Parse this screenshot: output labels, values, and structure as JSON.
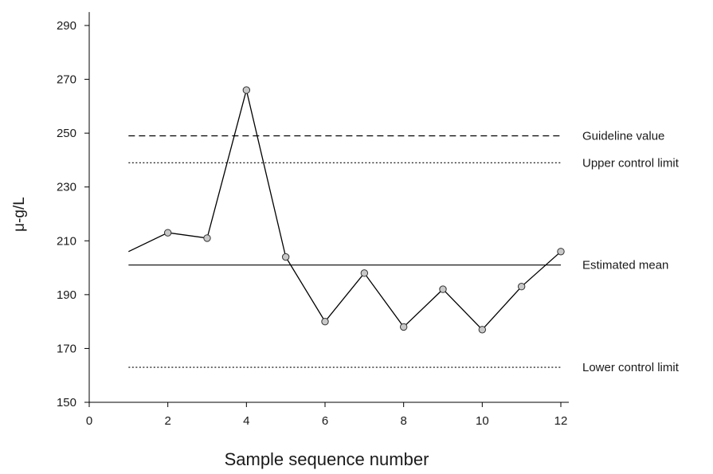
{
  "chart_data": {
    "type": "line",
    "xlabel": "Sample sequence number",
    "ylabel": "μ-g/L",
    "xlim": [
      0,
      12
    ],
    "ylim": [
      150,
      295
    ],
    "x_ticks": [
      0,
      2,
      4,
      6,
      8,
      10,
      12
    ],
    "y_ticks": [
      150,
      170,
      190,
      210,
      230,
      250,
      270,
      290
    ],
    "series": [
      {
        "x": [
          1,
          2,
          3,
          4,
          5,
          6,
          7,
          8,
          9,
          10,
          11,
          12
        ],
        "y": [
          206,
          213,
          211,
          266,
          204,
          180,
          198,
          178,
          192,
          177,
          193,
          206
        ],
        "marker_from_index": 1
      }
    ],
    "reference_lines": [
      {
        "label": "Guideline value",
        "y": 249,
        "style": "dashed"
      },
      {
        "label": "Upper control limit",
        "y": 239,
        "style": "dotted"
      },
      {
        "label": "Estimated mean",
        "y": 201,
        "style": "solid"
      },
      {
        "label": "Lower control limit",
        "y": 163,
        "style": "dotted"
      }
    ],
    "reference_x_range": [
      1,
      12
    ],
    "grid": false,
    "colors": {
      "line": "#000000",
      "marker_fill": "#c8c8c8",
      "marker_stroke": "#333333",
      "axis": "#000000"
    }
  }
}
